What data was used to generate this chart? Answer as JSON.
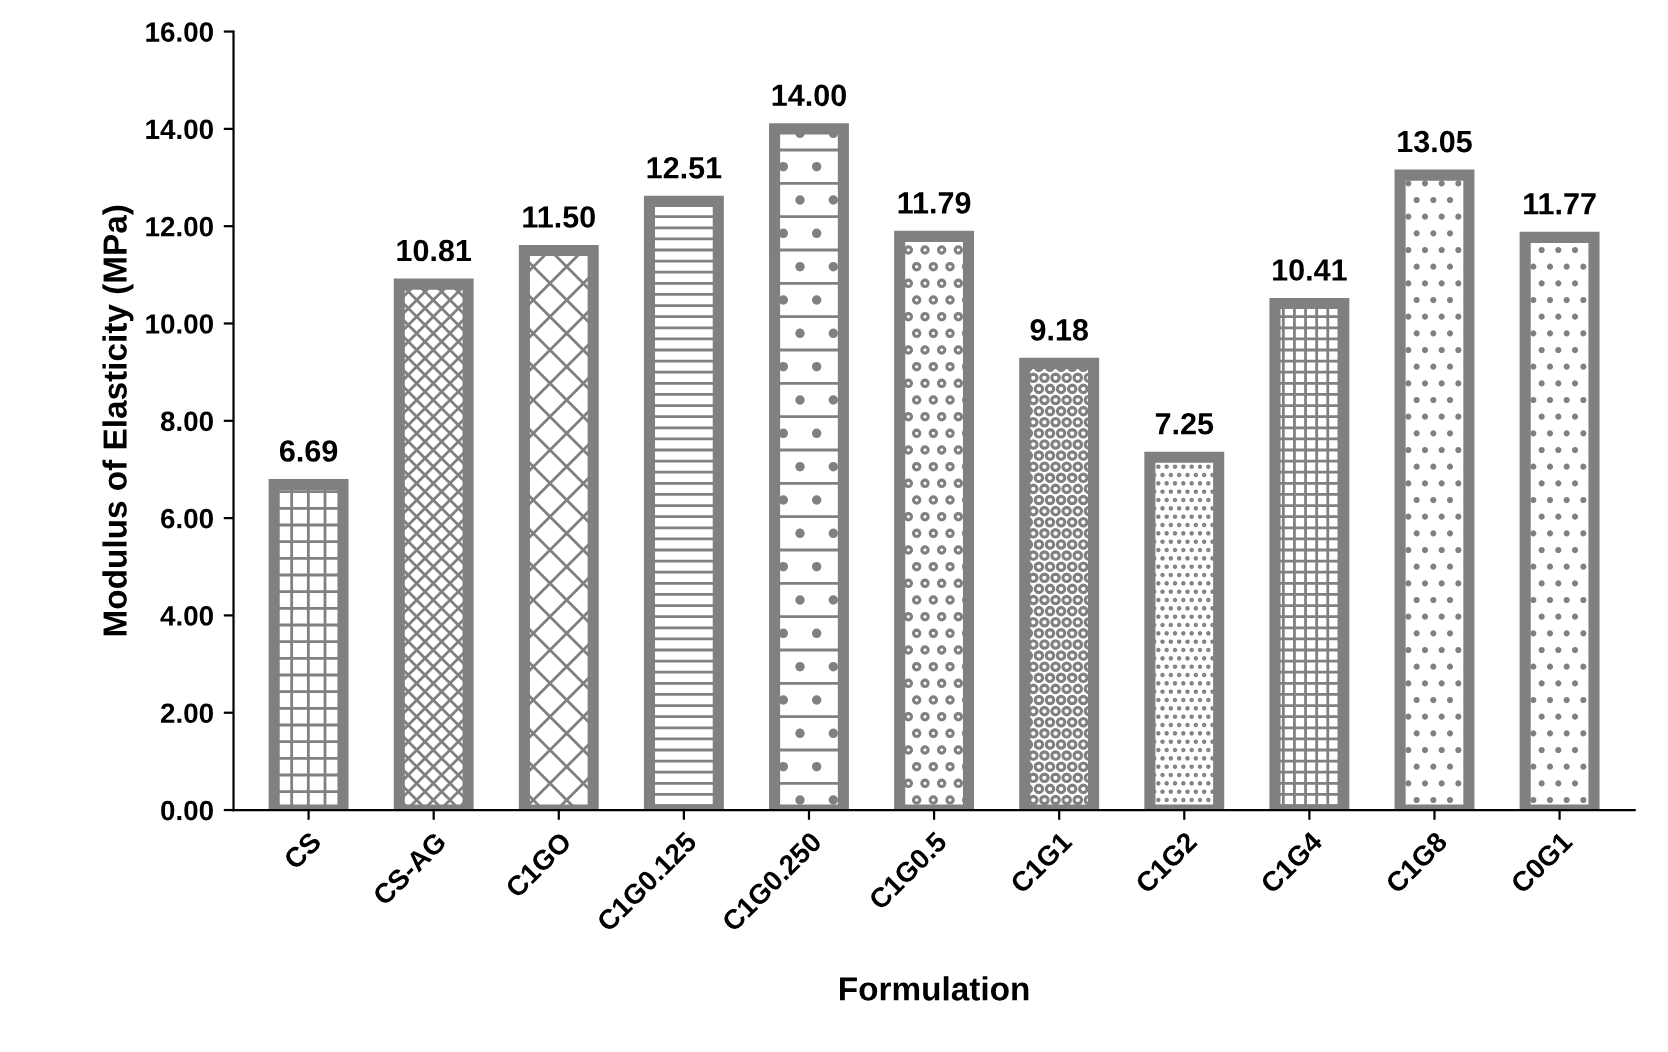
{
  "chart_data": {
    "type": "bar",
    "xlabel": "Formulation",
    "ylabel": "Modulus of Elasticity (MPa)",
    "categories": [
      "CS",
      "CS-AG",
      "C1GO",
      "C1G0.125",
      "C1G0.250",
      "C1G0.5",
      "C1G1",
      "C1G2",
      "C1G4",
      "C1G8",
      "C0G1"
    ],
    "values": [
      6.69,
      10.81,
      11.5,
      12.51,
      14.0,
      11.79,
      9.18,
      7.25,
      10.41,
      13.05,
      11.77
    ],
    "value_labels": [
      "6.69",
      "10.81",
      "11.50",
      "12.51",
      "14.00",
      "11.79",
      "9.18",
      "7.25",
      "10.41",
      "13.05",
      "11.77"
    ],
    "color": "#808080",
    "ylim": [
      0,
      16
    ],
    "yticks": [
      {
        "value": 0,
        "label": "0.00"
      },
      {
        "value": 2,
        "label": "2.00"
      },
      {
        "value": 4,
        "label": "4.00"
      },
      {
        "value": 6,
        "label": "6.00"
      },
      {
        "value": 8,
        "label": "8.00"
      },
      {
        "value": 10,
        "label": "10.00"
      },
      {
        "value": 12,
        "label": "12.00"
      },
      {
        "value": 14,
        "label": "14.00"
      },
      {
        "value": 16,
        "label": "16.00"
      }
    ],
    "grid": false,
    "legend": false
  }
}
